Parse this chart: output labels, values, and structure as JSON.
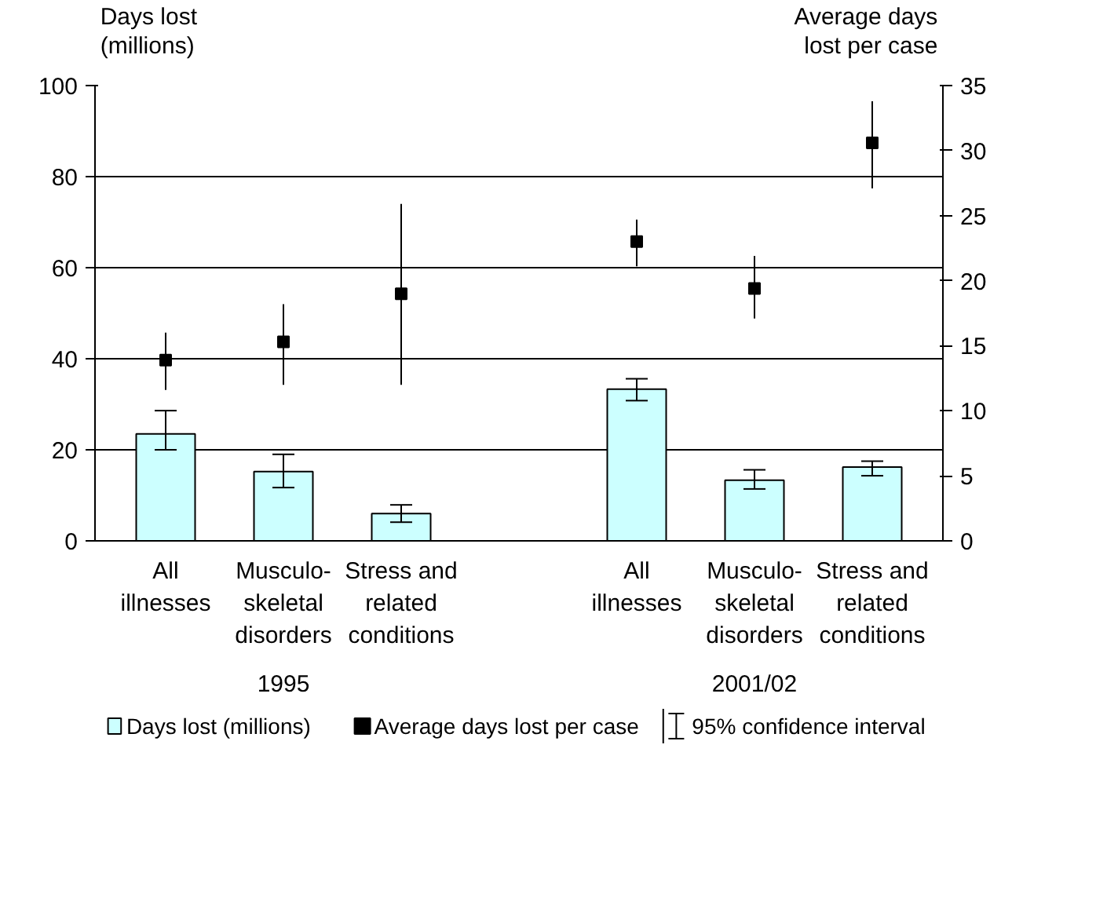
{
  "chart_data": {
    "type": "bar",
    "ylabel": "Days lost (millions)",
    "y2label": "Average days lost per case",
    "categories": [
      "All illnesses",
      "Musculo-skeletal disorders",
      "Stress and related conditions",
      null,
      "All illnesses",
      "Musculo-skeletal disorders",
      "Stress and related conditions"
    ],
    "series": [
      {
        "name": "Days lost (millions)",
        "color": "#ccffff",
        "values": [
          23.5,
          15.2,
          6,
          null,
          33.3,
          13.3,
          16.2
        ],
        "errors": [
          [
            20,
            28.6
          ],
          [
            11.7,
            19
          ],
          [
            4.1,
            7.9
          ],
          null,
          [
            30.8,
            35.6
          ],
          [
            11.4,
            15.6
          ],
          [
            14.3,
            17.5
          ]
        ]
      },
      {
        "name": "Average days lost per case",
        "type": "scatter",
        "axis": "y2",
        "marker": "square",
        "color": "#000000",
        "values": [
          13.9,
          15.3,
          19,
          null,
          23,
          19.4,
          30.6
        ],
        "errors": [
          [
            11.6,
            16
          ],
          [
            12,
            18.2
          ],
          [
            12,
            25.9
          ],
          null,
          [
            21.1,
            24.7
          ],
          [
            17.1,
            21.9
          ],
          [
            27.1,
            33.8
          ]
        ]
      }
    ],
    "ylim": [
      0,
      100
    ],
    "yticks": [
      0,
      20,
      40,
      60,
      80,
      100
    ],
    "y2lim": [
      0,
      35
    ],
    "y2ticks": [
      0,
      5,
      10,
      15,
      20,
      25,
      30,
      35
    ],
    "grid": "y",
    "legend": "bottom",
    "annotations": [
      "1995",
      "2001/02",
      "95% confidence interval"
    ]
  }
}
